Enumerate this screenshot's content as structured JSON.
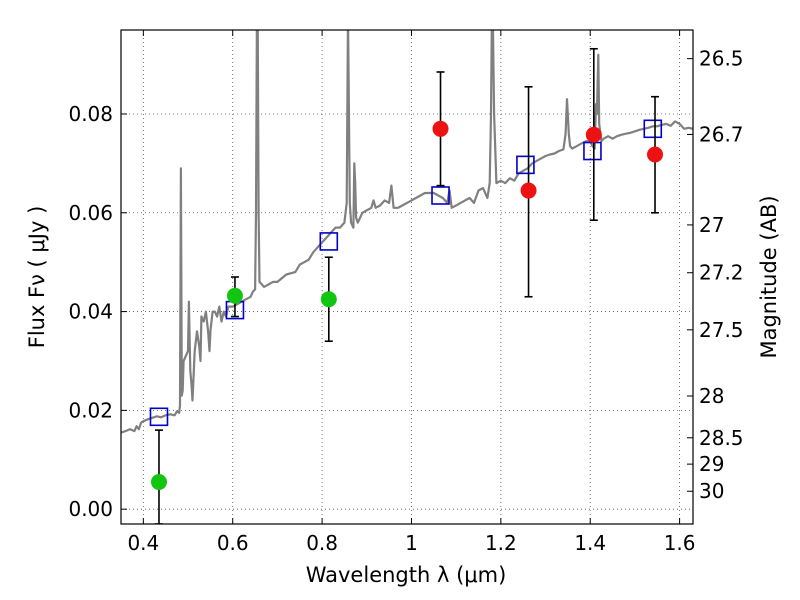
{
  "chart_data": {
    "type": "scatter",
    "xlabel": "Wavelength  λ (μm)",
    "ylabel": "Flux  Fν  ( μJy )",
    "y2label": "Magnitude (AB)",
    "xlim": [
      0.35,
      1.63
    ],
    "ylim": [
      -0.003,
      0.097
    ],
    "grid": true,
    "x_ticks": [
      {
        "v": 0.4,
        "label": "0.4"
      },
      {
        "v": 0.6,
        "label": "0.6"
      },
      {
        "v": 0.8,
        "label": "0.8"
      },
      {
        "v": 1.0,
        "label": "1"
      },
      {
        "v": 1.2,
        "label": "1.2"
      },
      {
        "v": 1.4,
        "label": "1.4"
      },
      {
        "v": 1.6,
        "label": "1.6"
      }
    ],
    "y_ticks": [
      {
        "v": 0.0,
        "label": "0.00"
      },
      {
        "v": 0.02,
        "label": "0.02"
      },
      {
        "v": 0.04,
        "label": "0.04"
      },
      {
        "v": 0.06,
        "label": "0.06"
      },
      {
        "v": 0.08,
        "label": "0.08"
      }
    ],
    "mag_ticks": [
      {
        "mag": 26.5,
        "label": "26.5"
      },
      {
        "mag": 26.7,
        "label": "26.7"
      },
      {
        "mag": 27,
        "label": "27"
      },
      {
        "mag": 27.2,
        "label": "27.2"
      },
      {
        "mag": 27.5,
        "label": "27.5"
      },
      {
        "mag": 28,
        "label": "28"
      },
      {
        "mag": 28.5,
        "label": "28.5"
      },
      {
        "mag": 29,
        "label": "29"
      },
      {
        "mag": 30,
        "label": "30"
      }
    ],
    "colors": {
      "spectrum": "#808080",
      "model_square": "#0000cc",
      "green_points": "#11c511",
      "red_points": "#ee1111",
      "errorbar": "#000000",
      "grid": "#555555"
    },
    "series": [
      {
        "kind": "spectrum",
        "points": [
          [
            0.35,
            0.0155
          ],
          [
            0.36,
            0.0158
          ],
          [
            0.37,
            0.0162
          ],
          [
            0.375,
            0.016
          ],
          [
            0.38,
            0.0158
          ],
          [
            0.385,
            0.0168
          ],
          [
            0.39,
            0.0162
          ],
          [
            0.395,
            0.0175
          ],
          [
            0.4,
            0.0178
          ],
          [
            0.41,
            0.0182
          ],
          [
            0.42,
            0.0185
          ],
          [
            0.43,
            0.0188
          ],
          [
            0.44,
            0.0186
          ],
          [
            0.45,
            0.019
          ],
          [
            0.46,
            0.0192
          ],
          [
            0.47,
            0.019
          ],
          [
            0.475,
            0.0198
          ],
          [
            0.48,
            0.0195
          ],
          [
            0.482,
            0.021
          ],
          [
            0.484,
            0.069
          ],
          [
            0.486,
            0.023
          ],
          [
            0.488,
            0.024
          ],
          [
            0.49,
            0.03
          ],
          [
            0.495,
            0.031
          ],
          [
            0.5,
            0.032
          ],
          [
            0.502,
            0.042
          ],
          [
            0.504,
            0.033
          ],
          [
            0.505,
            0.028
          ],
          [
            0.508,
            0.025
          ],
          [
            0.51,
            0.022
          ],
          [
            0.515,
            0.032
          ],
          [
            0.52,
            0.036
          ],
          [
            0.525,
            0.033
          ],
          [
            0.528,
            0.03
          ],
          [
            0.53,
            0.039
          ],
          [
            0.535,
            0.038
          ],
          [
            0.54,
            0.04
          ],
          [
            0.545,
            0.036
          ],
          [
            0.548,
            0.032
          ],
          [
            0.55,
            0.036
          ],
          [
            0.555,
            0.04
          ],
          [
            0.56,
            0.04
          ],
          [
            0.565,
            0.039
          ],
          [
            0.57,
            0.041
          ],
          [
            0.575,
            0.038
          ],
          [
            0.58,
            0.04
          ],
          [
            0.585,
            0.039
          ],
          [
            0.59,
            0.041
          ],
          [
            0.6,
            0.041
          ],
          [
            0.61,
            0.0415
          ],
          [
            0.62,
            0.042
          ],
          [
            0.63,
            0.0425
          ],
          [
            0.64,
            0.043
          ],
          [
            0.645,
            0.044
          ],
          [
            0.65,
            0.0445
          ],
          [
            0.652,
            0.06
          ],
          [
            0.654,
            0.099
          ],
          [
            0.656,
            0.1
          ],
          [
            0.658,
            0.06
          ],
          [
            0.66,
            0.046
          ],
          [
            0.67,
            0.045
          ],
          [
            0.68,
            0.0455
          ],
          [
            0.69,
            0.046
          ],
          [
            0.7,
            0.046
          ],
          [
            0.72,
            0.0475
          ],
          [
            0.74,
            0.048
          ],
          [
            0.75,
            0.0495
          ],
          [
            0.76,
            0.05
          ],
          [
            0.77,
            0.0505
          ],
          [
            0.78,
            0.052
          ],
          [
            0.79,
            0.053
          ],
          [
            0.8,
            0.054
          ],
          [
            0.81,
            0.055
          ],
          [
            0.82,
            0.056
          ],
          [
            0.83,
            0.057
          ],
          [
            0.84,
            0.057
          ],
          [
            0.845,
            0.0575
          ],
          [
            0.85,
            0.058
          ],
          [
            0.855,
            0.062
          ],
          [
            0.858,
            0.1
          ],
          [
            0.862,
            0.062
          ],
          [
            0.865,
            0.058
          ],
          [
            0.87,
            0.057
          ],
          [
            0.872,
            0.07
          ],
          [
            0.874,
            0.066
          ],
          [
            0.876,
            0.059
          ],
          [
            0.88,
            0.058
          ],
          [
            0.885,
            0.059
          ],
          [
            0.89,
            0.06
          ],
          [
            0.9,
            0.0605
          ],
          [
            0.91,
            0.061
          ],
          [
            0.915,
            0.0625
          ],
          [
            0.92,
            0.061
          ],
          [
            0.93,
            0.0615
          ],
          [
            0.94,
            0.0625
          ],
          [
            0.95,
            0.062
          ],
          [
            0.955,
            0.0655
          ],
          [
            0.96,
            0.061
          ],
          [
            0.97,
            0.061
          ],
          [
            0.98,
            0.0615
          ],
          [
            0.99,
            0.062
          ],
          [
            1.0,
            0.0625
          ],
          [
            1.01,
            0.063
          ],
          [
            1.02,
            0.0635
          ],
          [
            1.03,
            0.064
          ],
          [
            1.04,
            0.064
          ],
          [
            1.05,
            0.064
          ],
          [
            1.06,
            0.0635
          ],
          [
            1.07,
            0.063
          ],
          [
            1.08,
            0.062
          ],
          [
            1.085,
            0.0645
          ],
          [
            1.09,
            0.061
          ],
          [
            1.1,
            0.0615
          ],
          [
            1.11,
            0.062
          ],
          [
            1.12,
            0.0625
          ],
          [
            1.13,
            0.063
          ],
          [
            1.14,
            0.062
          ],
          [
            1.15,
            0.0645
          ],
          [
            1.16,
            0.065
          ],
          [
            1.17,
            0.063
          ],
          [
            1.175,
            0.066
          ],
          [
            1.178,
            0.08
          ],
          [
            1.18,
            0.1
          ],
          [
            1.182,
            0.1
          ],
          [
            1.185,
            0.08
          ],
          [
            1.19,
            0.066
          ],
          [
            1.2,
            0.0665
          ],
          [
            1.21,
            0.066
          ],
          [
            1.22,
            0.067
          ],
          [
            1.23,
            0.0665
          ],
          [
            1.24,
            0.068
          ],
          [
            1.25,
            0.0685
          ],
          [
            1.26,
            0.069
          ],
          [
            1.27,
            0.07
          ],
          [
            1.28,
            0.0705
          ],
          [
            1.29,
            0.071
          ],
          [
            1.3,
            0.0715
          ],
          [
            1.31,
            0.0718
          ],
          [
            1.32,
            0.072
          ],
          [
            1.33,
            0.0725
          ],
          [
            1.34,
            0.0728
          ],
          [
            1.345,
            0.076
          ],
          [
            1.348,
            0.083
          ],
          [
            1.352,
            0.076
          ],
          [
            1.355,
            0.0735
          ],
          [
            1.36,
            0.073
          ],
          [
            1.37,
            0.0735
          ],
          [
            1.38,
            0.074
          ],
          [
            1.39,
            0.0745
          ],
          [
            1.4,
            0.0745
          ],
          [
            1.405,
            0.0735
          ],
          [
            1.41,
            0.073
          ],
          [
            1.413,
            0.082
          ],
          [
            1.415,
            0.08
          ],
          [
            1.418,
            0.092
          ],
          [
            1.42,
            0.078
          ],
          [
            1.425,
            0.0745
          ],
          [
            1.43,
            0.075
          ],
          [
            1.44,
            0.0755
          ],
          [
            1.45,
            0.075
          ],
          [
            1.46,
            0.0755
          ],
          [
            1.47,
            0.0758
          ],
          [
            1.48,
            0.076
          ],
          [
            1.49,
            0.0762
          ],
          [
            1.5,
            0.0765
          ],
          [
            1.51,
            0.0768
          ],
          [
            1.52,
            0.077
          ],
          [
            1.53,
            0.0772
          ],
          [
            1.54,
            0.0775
          ],
          [
            1.55,
            0.0775
          ],
          [
            1.56,
            0.0778
          ],
          [
            1.57,
            0.078
          ],
          [
            1.58,
            0.0776
          ],
          [
            1.59,
            0.0785
          ],
          [
            1.6,
            0.078
          ],
          [
            1.61,
            0.077
          ],
          [
            1.62,
            0.0772
          ],
          [
            1.63,
            0.077
          ]
        ]
      },
      {
        "kind": "model_photometry",
        "points": [
          {
            "x": 0.435,
            "y": 0.0187
          },
          {
            "x": 0.605,
            "y": 0.0403
          },
          {
            "x": 0.815,
            "y": 0.0542
          },
          {
            "x": 1.065,
            "y": 0.0635
          },
          {
            "x": 1.255,
            "y": 0.0697
          },
          {
            "x": 1.405,
            "y": 0.0725
          },
          {
            "x": 1.54,
            "y": 0.077
          }
        ]
      },
      {
        "kind": "observed_green",
        "points": [
          {
            "x": 0.435,
            "y": 0.0055,
            "ylo": -0.003,
            "yhi": 0.016
          },
          {
            "x": 0.605,
            "y": 0.0432,
            "ylo": 0.039,
            "yhi": 0.047
          },
          {
            "x": 0.815,
            "y": 0.0425,
            "ylo": 0.034,
            "yhi": 0.051
          }
        ]
      },
      {
        "kind": "observed_red",
        "points": [
          {
            "x": 1.065,
            "y": 0.077,
            "ylo": 0.0655,
            "yhi": 0.0885
          },
          {
            "x": 1.262,
            "y": 0.0645,
            "ylo": 0.043,
            "yhi": 0.0855
          },
          {
            "x": 1.408,
            "y": 0.0758,
            "ylo": 0.0585,
            "yhi": 0.0932
          },
          {
            "x": 1.545,
            "y": 0.0718,
            "ylo": 0.06,
            "yhi": 0.0835
          }
        ]
      }
    ]
  }
}
